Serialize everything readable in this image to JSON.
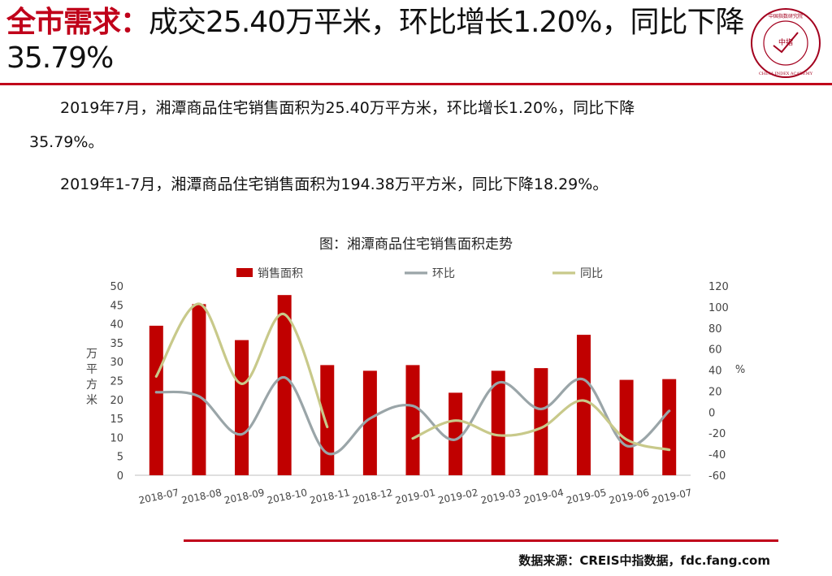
{
  "header": {
    "title_accent": "全市需求：",
    "title_rest": "成交25.40万平米，环比增长1.20%，同比下降35.79%"
  },
  "logo": {
    "cn_text": "中国指数研究院",
    "center_text": "中指",
    "en_text": "CHINA INDEX ACADEMY",
    "color": "#a3001e"
  },
  "body": {
    "p1_line1": "2019年7月，湘潭商品住宅销售面积为25.40万平方米，环比增长1.20%，同比下降",
    "p1_line2": "35.79%。",
    "p2": "2019年1-7月，湘潭商品住宅销售面积为194.38万平方米，同比下降18.29%。"
  },
  "chart_data": {
    "type": "bar",
    "title": "图：湘潭商品住宅销售面积走势",
    "categories": [
      "2018-07",
      "2018-08",
      "2018-09",
      "2018-10",
      "2018-11",
      "2018-12",
      "2019-01",
      "2019-02",
      "2019-03",
      "2019-04",
      "2019-05",
      "2019-06",
      "2019-07"
    ],
    "left_axis": {
      "label": "万平方米",
      "range": [
        0,
        50
      ],
      "ticks": [
        0,
        5,
        10,
        15,
        20,
        25,
        30,
        35,
        40,
        45,
        50
      ]
    },
    "right_axis": {
      "label": "%",
      "range": [
        -60,
        120
      ],
      "ticks": [
        -60,
        -40,
        -20,
        0,
        20,
        40,
        60,
        80,
        100,
        120
      ]
    },
    "series": [
      {
        "name": "销售面积",
        "kind": "bar",
        "axis": "left",
        "color": "#c00000",
        "values": [
          39.5,
          45.2,
          35.7,
          47.6,
          29.1,
          27.6,
          29.1,
          21.8,
          27.6,
          28.3,
          37.1,
          25.2,
          25.4
        ]
      },
      {
        "name": "环比",
        "kind": "line",
        "axis": "right",
        "color": "#9aa5a8",
        "values": [
          19,
          15,
          -21,
          33,
          -39,
          -6,
          6,
          -26,
          28,
          3,
          31,
          -32,
          1.2
        ]
      },
      {
        "name": "同比",
        "kind": "line",
        "axis": "right",
        "color": "#c8c98a",
        "values": [
          34,
          103,
          27,
          93,
          -14,
          null,
          -25,
          -8,
          -22,
          -15,
          11,
          -26,
          -35.79
        ]
      }
    ],
    "legend_position": "top",
    "grid": false
  },
  "footer": {
    "source": "数据来源：CREIS中指数据，fdc.fang.com"
  }
}
